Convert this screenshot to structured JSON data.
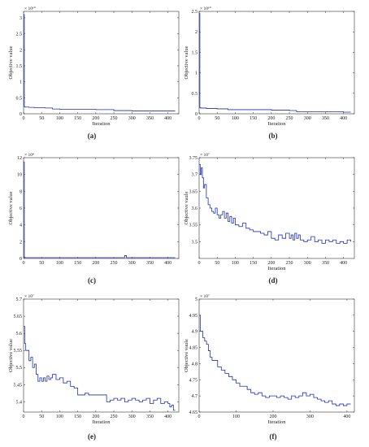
{
  "chart_data": [
    {
      "type": "line",
      "caption": "(a)",
      "xlabel": "Iteration",
      "ylabel": "Objective value",
      "exponent_label": "× 10¹⁰",
      "xlim": [
        0,
        430
      ],
      "ylim": [
        0,
        3.2
      ],
      "xticks": [
        0,
        50,
        100,
        150,
        200,
        250,
        300,
        350,
        400
      ],
      "yticks": [
        0,
        0.5,
        1,
        1.5,
        2,
        2.5,
        3
      ],
      "ytick_labels": [
        "0",
        "0.5",
        "1",
        "1.5",
        "2",
        "2.5",
        "3"
      ],
      "series": [
        {
          "color": "#1f2fb5",
          "x": [
            0,
            2,
            4,
            15,
            30,
            60,
            80,
            100,
            150,
            200,
            250,
            300,
            350,
            400,
            420
          ],
          "y": [
            3.1,
            0.22,
            0.21,
            0.2,
            0.19,
            0.18,
            0.15,
            0.14,
            0.14,
            0.13,
            0.1,
            0.09,
            0.09,
            0.09,
            0.09
          ]
        }
      ]
    },
    {
      "type": "line",
      "caption": "(b)",
      "xlabel": "Iteration",
      "ylabel": "Objective value",
      "exponent_label": "× 10¹⁰",
      "xlim": [
        0,
        430
      ],
      "ylim": [
        0,
        2.5
      ],
      "xticks": [
        0,
        50,
        100,
        150,
        200,
        250,
        300,
        350,
        400
      ],
      "yticks": [
        0,
        0.5,
        1,
        1.5,
        2,
        2.5
      ],
      "ytick_labels": [
        "0",
        "0.5",
        "1",
        "1.5",
        "2",
        "2.5"
      ],
      "series": [
        {
          "color": "#1f2fb5",
          "x": [
            0,
            2,
            4,
            20,
            50,
            80,
            150,
            200,
            250,
            270,
            300,
            350,
            400,
            420
          ],
          "y": [
            2.45,
            0.15,
            0.14,
            0.13,
            0.12,
            0.1,
            0.1,
            0.09,
            0.08,
            0.05,
            0.05,
            0.05,
            0.04,
            0.04
          ]
        }
      ]
    },
    {
      "type": "line",
      "caption": "(c)",
      "xlabel": "",
      "ylabel": "Objective value",
      "exponent_label": "× 10⁸",
      "xlim": [
        0,
        430
      ],
      "ylim": [
        0,
        12
      ],
      "xticks": [
        0,
        50,
        100,
        150,
        200,
        250,
        300,
        350,
        400
      ],
      "yticks": [
        0,
        2,
        4,
        6,
        8,
        10,
        12
      ],
      "ytick_labels": [
        "0",
        "2",
        "4",
        "6",
        "8",
        "10",
        "12"
      ],
      "series": [
        {
          "color": "#1f2fb5",
          "x": [
            0,
            2,
            4,
            50,
            100,
            150,
            200,
            250,
            275,
            280,
            285,
            300,
            350,
            400,
            420
          ],
          "y": [
            11.5,
            0.15,
            0.1,
            0.1,
            0.1,
            0.1,
            0.1,
            0.1,
            0.1,
            0.35,
            0.1,
            0.1,
            0.1,
            0.1,
            0.1
          ]
        }
      ]
    },
    {
      "type": "line",
      "caption": "(d)",
      "xlabel": "Iteration",
      "ylabel": "Objective vaule",
      "exponent_label": "× 10⁷",
      "xlim": [
        0,
        430
      ],
      "ylim": [
        3.45,
        3.75
      ],
      "xticks": [
        0,
        50,
        100,
        150,
        200,
        250,
        300,
        350,
        400
      ],
      "yticks": [
        3.5,
        3.55,
        3.6,
        3.65,
        3.7,
        3.75
      ],
      "ytick_labels": [
        "3.5",
        "3.55",
        "3.6",
        "3.65",
        "3.7",
        "3.75"
      ],
      "series": [
        {
          "color": "#1f2fb5",
          "x": [
            0,
            3,
            6,
            9,
            12,
            15,
            20,
            25,
            30,
            35,
            40,
            45,
            50,
            55,
            60,
            65,
            70,
            75,
            80,
            85,
            90,
            95,
            100,
            110,
            120,
            130,
            140,
            150,
            160,
            170,
            180,
            190,
            200,
            210,
            220,
            230,
            240,
            250,
            255,
            260,
            265,
            270,
            275,
            280,
            290,
            300,
            310,
            320,
            330,
            340,
            350,
            360,
            370,
            380,
            390,
            400,
            410,
            420
          ],
          "y": [
            3.73,
            3.7,
            3.72,
            3.69,
            3.66,
            3.67,
            3.63,
            3.61,
            3.6,
            3.59,
            3.585,
            3.6,
            3.58,
            3.57,
            3.58,
            3.59,
            3.57,
            3.585,
            3.56,
            3.575,
            3.555,
            3.57,
            3.55,
            3.545,
            3.555,
            3.54,
            3.535,
            3.53,
            3.53,
            3.525,
            3.52,
            3.53,
            3.51,
            3.505,
            3.52,
            3.51,
            3.525,
            3.51,
            3.52,
            3.505,
            3.525,
            3.51,
            3.52,
            3.505,
            3.5,
            3.505,
            3.515,
            3.5,
            3.505,
            3.495,
            3.505,
            3.5,
            3.505,
            3.495,
            3.5,
            3.495,
            3.505,
            3.5
          ]
        }
      ]
    },
    {
      "type": "line",
      "caption": "(e)",
      "xlabel": "Iteration",
      "ylabel": "Objective value",
      "exponent_label": "× 10⁷",
      "xlim": [
        0,
        430
      ],
      "ylim": [
        5.37,
        5.7
      ],
      "xticks": [
        0,
        50,
        100,
        150,
        200,
        250,
        300,
        350,
        400
      ],
      "yticks": [
        5.4,
        5.45,
        5.5,
        5.55,
        5.6,
        5.65,
        5.7
      ],
      "ytick_labels": [
        "5.4",
        "5.45",
        "5.5",
        "5.55",
        "5.6",
        "5.65",
        "5.7"
      ],
      "series": [
        {
          "color": "#1f2fb5",
          "x": [
            0,
            3,
            6,
            10,
            15,
            20,
            25,
            30,
            35,
            40,
            45,
            50,
            55,
            60,
            65,
            70,
            75,
            80,
            90,
            100,
            110,
            120,
            130,
            140,
            150,
            160,
            170,
            180,
            190,
            200,
            210,
            220,
            230,
            240,
            250,
            260,
            270,
            280,
            290,
            300,
            310,
            320,
            330,
            340,
            350,
            360,
            370,
            380,
            390,
            400,
            405,
            410,
            415,
            420
          ],
          "y": [
            5.62,
            5.57,
            5.55,
            5.55,
            5.52,
            5.53,
            5.5,
            5.51,
            5.48,
            5.46,
            5.47,
            5.46,
            5.47,
            5.46,
            5.475,
            5.465,
            5.47,
            5.48,
            5.465,
            5.47,
            5.455,
            5.46,
            5.445,
            5.44,
            5.42,
            5.42,
            5.425,
            5.42,
            5.42,
            5.42,
            5.42,
            5.42,
            5.4,
            5.405,
            5.41,
            5.405,
            5.41,
            5.4,
            5.405,
            5.41,
            5.405,
            5.4,
            5.405,
            5.41,
            5.395,
            5.405,
            5.41,
            5.395,
            5.4,
            5.395,
            5.385,
            5.39,
            5.375,
            5.375
          ]
        }
      ]
    },
    {
      "type": "line",
      "caption": "(f)",
      "xlabel": "Iteration",
      "ylabel": "Objective vaule",
      "exponent_label": "× 10⁷",
      "xlim": [
        0,
        420
      ],
      "ylim": [
        4.65,
        5.0
      ],
      "xticks": [
        0,
        100,
        200,
        300,
        400
      ],
      "yticks": [
        4.65,
        4.7,
        4.75,
        4.8,
        4.85,
        4.9,
        4.95,
        5.0
      ],
      "ytick_labels": [
        "4.65",
        "4.7",
        "4.75",
        "4.8",
        "4.85",
        "4.9",
        "4.95",
        "5"
      ],
      "series": [
        {
          "color": "#1f2fb5",
          "x": [
            0,
            3,
            6,
            10,
            15,
            20,
            25,
            30,
            35,
            40,
            50,
            60,
            70,
            80,
            90,
            100,
            110,
            120,
            130,
            140,
            150,
            160,
            170,
            180,
            190,
            200,
            210,
            220,
            230,
            240,
            250,
            260,
            270,
            280,
            290,
            300,
            310,
            320,
            330,
            340,
            350,
            360,
            370,
            380,
            390,
            400,
            410
          ],
          "y": [
            4.95,
            4.9,
            4.9,
            4.88,
            4.87,
            4.86,
            4.84,
            4.82,
            4.81,
            4.81,
            4.79,
            4.78,
            4.77,
            4.76,
            4.75,
            4.74,
            4.73,
            4.73,
            4.72,
            4.71,
            4.705,
            4.71,
            4.7,
            4.695,
            4.7,
            4.7,
            4.695,
            4.7,
            4.695,
            4.69,
            4.7,
            4.695,
            4.7,
            4.71,
            4.7,
            4.705,
            4.695,
            4.69,
            4.685,
            4.68,
            4.685,
            4.675,
            4.67,
            4.675,
            4.67,
            4.675,
            4.675
          ]
        }
      ]
    }
  ]
}
